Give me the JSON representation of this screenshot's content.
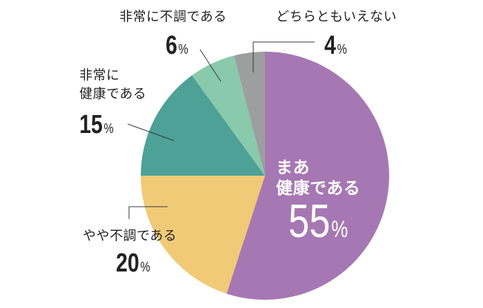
{
  "chart_data": {
    "type": "pie",
    "unit": "%",
    "start": "top",
    "direction": "clockwise",
    "slices": [
      {
        "label_lines": [
          "まあ",
          "健康である"
        ],
        "value": 55,
        "color": "#a678b3"
      },
      {
        "label_lines": [
          "やや不調である"
        ],
        "value": 20,
        "color": "#f0ca77"
      },
      {
        "label_lines": [
          "非常に",
          "健康である"
        ],
        "value": 15,
        "color": "#4ea197"
      },
      {
        "label_lines": [
          "非常に不調である"
        ],
        "value": 6,
        "color": "#88caab"
      },
      {
        "label_lines": [
          "どちらともいえない"
        ],
        "value": 4,
        "color": "#9d9e9e"
      }
    ]
  }
}
